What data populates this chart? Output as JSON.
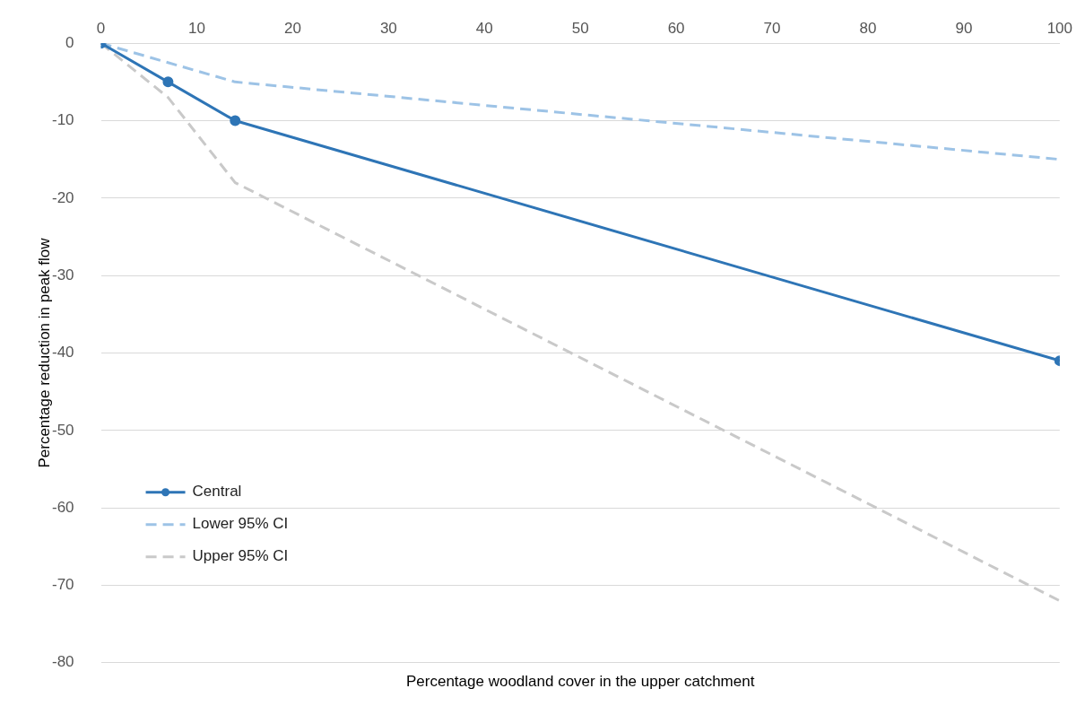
{
  "chart_data": {
    "type": "line",
    "xlabel": "Percentage woodland cover in the upper catchment",
    "ylabel": "Percentage reduction in peak flow",
    "xlim": [
      0,
      100
    ],
    "xticks": [
      0,
      10,
      20,
      30,
      40,
      50,
      60,
      70,
      80,
      90,
      100
    ],
    "ylim": [
      -80,
      0
    ],
    "yticks": [
      -80,
      -70,
      -60,
      -50,
      -40,
      -30,
      -20,
      -10,
      0
    ],
    "grid": "y",
    "legend": "bottom left",
    "series": [
      {
        "name": "Central",
        "color": "#2e75b6",
        "x": [
          0,
          7,
          14,
          100
        ],
        "values": [
          0,
          -5,
          -10,
          -41
        ],
        "marker": "circle",
        "line_style": "solid"
      },
      {
        "name": "Lower 95% CI",
        "color": "#9dc3e6",
        "x": [
          0,
          14,
          100
        ],
        "values": [
          0,
          -5,
          -15
        ],
        "marker": "none",
        "line_style": "dashed"
      },
      {
        "name": "Upper 95% CI",
        "color": "#c9c9c9",
        "x": [
          0,
          7,
          14,
          100
        ],
        "values": [
          0,
          -7,
          -18,
          -72
        ],
        "marker": "none",
        "line_style": "dashed"
      }
    ]
  }
}
